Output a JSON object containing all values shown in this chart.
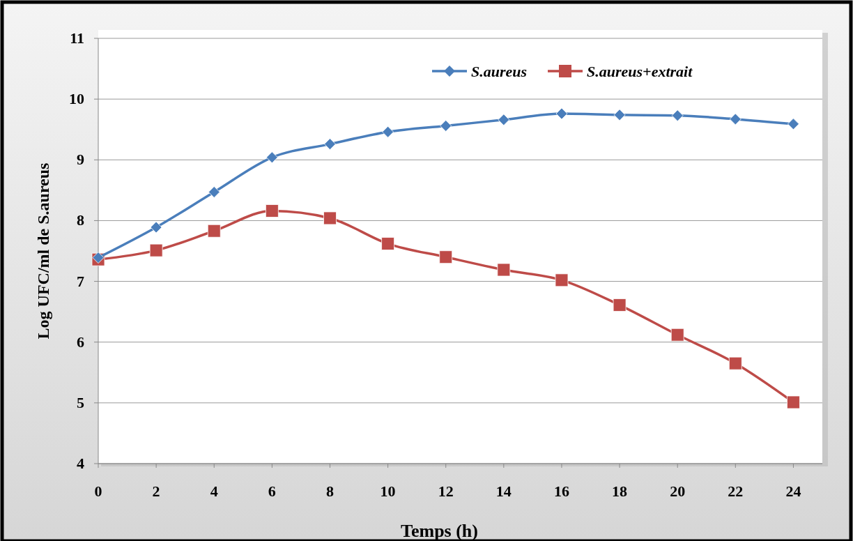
{
  "chart_data": {
    "type": "line",
    "xlabel": "Temps (h)",
    "ylabel": "Log  UFC/ml  de S.aureus",
    "x": [
      0,
      2,
      4,
      6,
      8,
      10,
      12,
      14,
      16,
      18,
      20,
      22,
      24
    ],
    "series": [
      {
        "name": "S.aureus",
        "color": "#4a7ebb",
        "marker": "diamond",
        "values": [
          7.39,
          7.89,
          8.47,
          9.04,
          9.26,
          9.46,
          9.56,
          9.66,
          9.76,
          9.74,
          9.73,
          9.67,
          9.59
        ]
      },
      {
        "name": "S.aureus+extrait",
        "color": "#be4b48",
        "marker": "square",
        "values": [
          7.36,
          7.51,
          7.83,
          8.16,
          8.04,
          7.62,
          7.4,
          7.19,
          7.02,
          6.61,
          6.12,
          5.65,
          5.01
        ]
      }
    ],
    "xlim": [
      0,
      25
    ],
    "xticks": [
      0,
      2,
      4,
      6,
      8,
      10,
      12,
      14,
      16,
      18,
      20,
      22,
      24
    ],
    "ylim": [
      4,
      11
    ],
    "yticks": [
      4,
      5,
      6,
      7,
      8,
      9,
      10,
      11
    ],
    "grid": "y",
    "legend": "top right",
    "line_style": "solid"
  }
}
